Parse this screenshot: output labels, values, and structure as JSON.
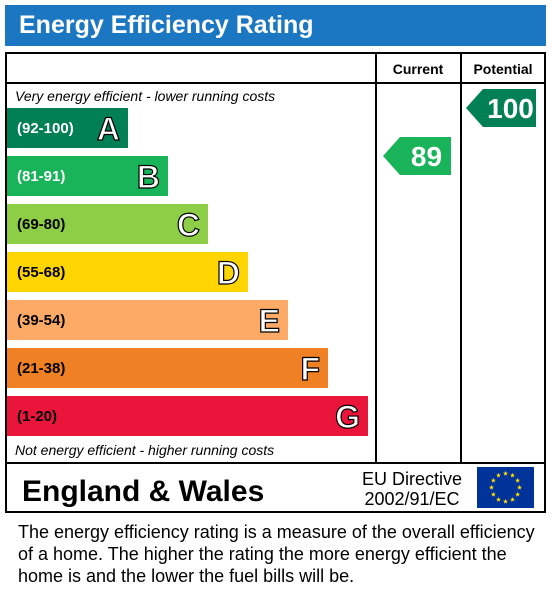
{
  "header": {
    "title": "Energy Efficiency Rating"
  },
  "columns": {
    "current": "Current",
    "potential": "Potential"
  },
  "top_note": "Very energy efficient - lower running costs",
  "bottom_note": "Not energy efficient - higher running costs",
  "region": "England & Wales",
  "directive": {
    "line1": "EU Directive",
    "line2": "2002/91/EC"
  },
  "description": "The energy efficiency rating is a measure of the overall efficiency of a home.  The higher the rating the more energy efficient the home is and the lower the fuel bills will be.",
  "chart_data": {
    "type": "bar",
    "categories": [
      "A",
      "B",
      "C",
      "D",
      "E",
      "F",
      "G"
    ],
    "bands": [
      {
        "letter": "A",
        "range": "(92-100)",
        "color": "#008054",
        "text_color": "#ffffff"
      },
      {
        "letter": "B",
        "range": "(81-91)",
        "color": "#19b459",
        "text_color": "#ffffff"
      },
      {
        "letter": "C",
        "range": "(69-80)",
        "color": "#8dce46",
        "text_color": "#000000"
      },
      {
        "letter": "D",
        "range": "(55-68)",
        "color": "#ffd500",
        "text_color": "#000000"
      },
      {
        "letter": "E",
        "range": "(39-54)",
        "color": "#fcaa65",
        "text_color": "#000000"
      },
      {
        "letter": "F",
        "range": "(21-38)",
        "color": "#ef8023",
        "text_color": "#000000"
      },
      {
        "letter": "G",
        "range": "(1-20)",
        "color": "#e9153b",
        "text_color": "#000000"
      }
    ],
    "ratings": [
      {
        "column": "current",
        "value": 89,
        "band": "B",
        "color": "#19b459"
      },
      {
        "column": "potential",
        "value": 100,
        "band": "A",
        "color": "#008054"
      }
    ]
  },
  "eu_flag": {
    "icon": "eu-flag-icon",
    "background": "#003399",
    "star_color": "#ffdd00"
  }
}
